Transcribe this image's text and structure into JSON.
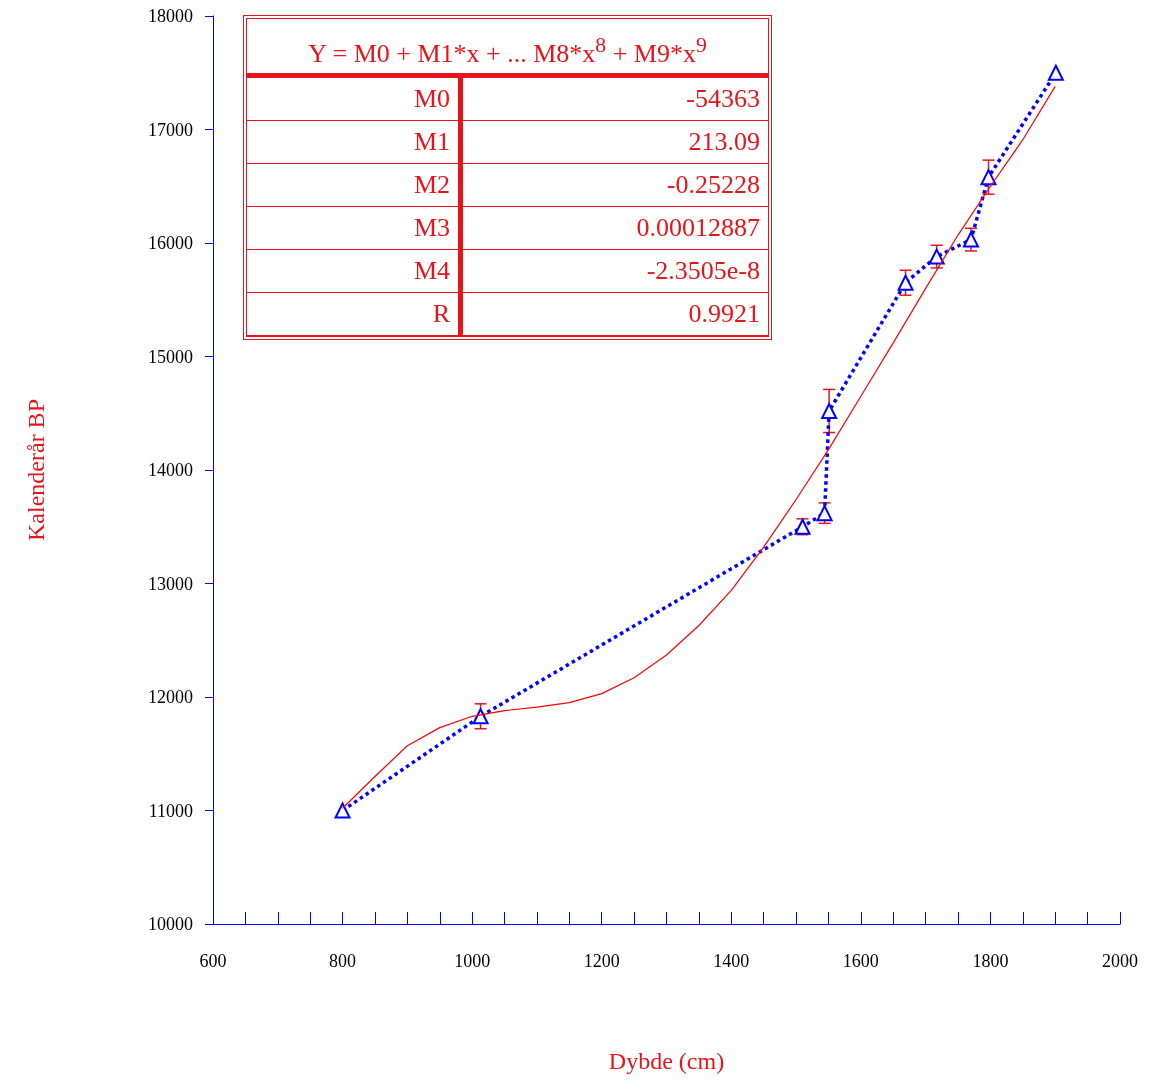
{
  "chart_data": {
    "type": "line",
    "xlabel": "Dybde (cm)",
    "ylabel": "Kalenderår BP",
    "xlim": [
      600,
      2000
    ],
    "ylim": [
      10000,
      18000
    ],
    "xticks": [
      600,
      {
        "value": 650,
        "label": null
      },
      {
        "value": 700,
        "label": null
      },
      {
        "value": 750,
        "label": null
      },
      800,
      {
        "value": 850,
        "label": null
      },
      {
        "value": 900,
        "label": null
      },
      {
        "value": 950,
        "label": null
      },
      1000,
      {
        "value": 1050,
        "label": null
      },
      {
        "value": 1100,
        "label": null
      },
      {
        "value": 1150,
        "label": null
      },
      1200,
      {
        "value": 1250,
        "label": null
      },
      {
        "value": 1300,
        "label": null
      },
      {
        "value": 1350,
        "label": null
      },
      1400,
      {
        "value": 1450,
        "label": null
      },
      {
        "value": 1500,
        "label": null
      },
      {
        "value": 1550,
        "label": null
      },
      1600,
      {
        "value": 1650,
        "label": null
      },
      {
        "value": 1700,
        "label": null
      },
      {
        "value": 1750,
        "label": null
      },
      1800,
      {
        "value": 1850,
        "label": null
      },
      {
        "value": 1900,
        "label": null
      },
      {
        "value": 1950,
        "label": null
      },
      2000
    ],
    "yticks": [
      10000,
      11000,
      12000,
      13000,
      14000,
      15000,
      16000,
      17000,
      18000
    ],
    "grid": false,
    "series": [
      {
        "color": "#0000ff",
        "marker": "triangle",
        "line_style": "dotted",
        "x": [
          800,
          1013,
          1510,
          1544,
          1551,
          1669,
          1717,
          1770,
          1797,
          1901
        ],
        "values": [
          11000,
          11830,
          13500,
          13620,
          14520,
          15650,
          15880,
          16030,
          16580,
          17500
        ],
        "errors": [
          null,
          110,
          70,
          90,
          190,
          110,
          100,
          100,
          150,
          null
        ]
      },
      {
        "color": "#ff0000",
        "marker": "none",
        "line_style": "solid",
        "x": [
          800,
          850,
          900,
          950,
          1000,
          1050,
          1100,
          1150,
          1200,
          1250,
          1300,
          1350,
          1400,
          1450,
          1500,
          1550,
          1600,
          1650,
          1700,
          1750,
          1800,
          1850,
          1900
        ],
        "values": [
          11020,
          11300,
          11570,
          11730,
          11830,
          11880,
          11910,
          11950,
          12030,
          12170,
          12370,
          12630,
          12940,
          13320,
          13740,
          14180,
          14650,
          15120,
          15600,
          16070,
          16500,
          16910,
          17380
        ]
      }
    ],
    "annotations": [
      "Y = M0 + M1*x + ... M8*x$^{8}$ + M9*x$^{9}$",
      "M0",
      "-54363",
      "M1",
      "213.09",
      "M2",
      "-0.25228",
      "M3",
      "0.00012887",
      "M4",
      "-2.3505e-8",
      "R",
      "0.9921"
    ]
  }
}
